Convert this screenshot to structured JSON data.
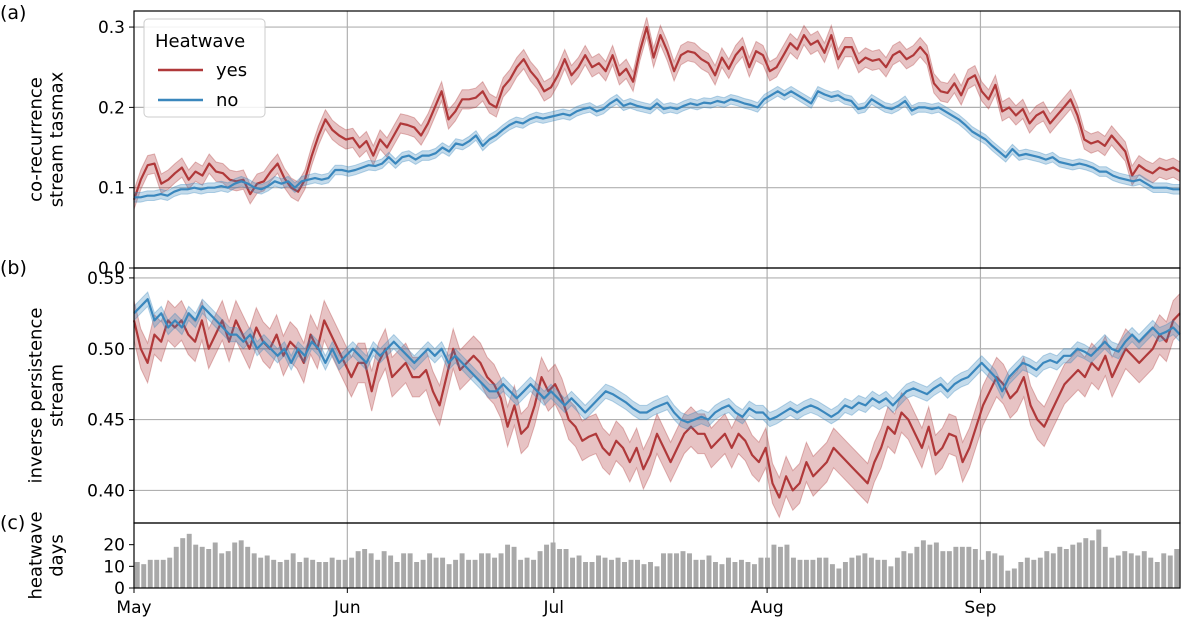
{
  "chart_data": {
    "type": "line",
    "x_axis": {
      "ticks": [
        "May",
        "Jun",
        "Jul",
        "Aug",
        "Sep"
      ],
      "tick_dates": [
        "05-01",
        "06-01",
        "07-01",
        "08-01",
        "09-01"
      ],
      "range": [
        "05-01",
        "09-30"
      ]
    },
    "legend": {
      "title": "Heatwave",
      "entries": [
        "yes",
        "no"
      ],
      "colors": [
        "#b0393a",
        "#3a87bd"
      ],
      "placement": "upper-left of panel (a)"
    },
    "grid": true,
    "panels": [
      {
        "label": "(a)",
        "ylabel": [
          "co-recurrence",
          "stream tasmax"
        ],
        "ylim": [
          0.0,
          0.32
        ],
        "yticks": [
          "0.0",
          "0.1",
          "0.2",
          "0.3"
        ],
        "series": [
          {
            "name": "yes",
            "color": "#b0393a",
            "band": 0.012,
            "values": [
              0.085,
              0.11,
              0.128,
              0.13,
              0.105,
              0.11,
              0.118,
              0.125,
              0.11,
              0.12,
              0.115,
              0.13,
              0.12,
              0.118,
              0.11,
              0.108,
              0.11,
              0.092,
              0.105,
              0.108,
              0.12,
              0.13,
              0.112,
              0.1,
              0.095,
              0.11,
              0.14,
              0.165,
              0.185,
              0.172,
              0.165,
              0.16,
              0.162,
              0.15,
              0.158,
              0.14,
              0.16,
              0.15,
              0.165,
              0.18,
              0.178,
              0.175,
              0.165,
              0.18,
              0.2,
              0.22,
              0.185,
              0.195,
              0.21,
              0.21,
              0.212,
              0.22,
              0.205,
              0.2,
              0.225,
              0.235,
              0.25,
              0.26,
              0.245,
              0.235,
              0.22,
              0.225,
              0.24,
              0.26,
              0.24,
              0.25,
              0.265,
              0.25,
              0.255,
              0.245,
              0.265,
              0.24,
              0.248,
              0.232,
              0.27,
              0.3,
              0.262,
              0.29,
              0.27,
              0.245,
              0.265,
              0.27,
              0.268,
              0.26,
              0.255,
              0.24,
              0.262,
              0.248,
              0.265,
              0.275,
              0.25,
              0.27,
              0.265,
              0.245,
              0.25,
              0.265,
              0.28,
              0.272,
              0.29,
              0.278,
              0.283,
              0.268,
              0.29,
              0.26,
              0.275,
              0.275,
              0.255,
              0.262,
              0.258,
              0.26,
              0.25,
              0.265,
              0.27,
              0.26,
              0.265,
              0.275,
              0.265,
              0.23,
              0.22,
              0.218,
              0.23,
              0.215,
              0.235,
              0.24,
              0.22,
              0.21,
              0.228,
              0.195,
              0.2,
              0.19,
              0.198,
              0.18,
              0.19,
              0.195,
              0.18,
              0.19,
              0.2,
              0.21,
              0.19,
              0.16,
              0.155,
              0.158,
              0.152,
              0.165,
              0.155,
              0.145,
              0.115,
              0.128,
              0.122,
              0.118,
              0.125,
              0.122,
              0.125,
              0.12
            ]
          },
          {
            "name": "no",
            "color": "#3a87bd",
            "band": 0.006,
            "values": [
              0.088,
              0.088,
              0.09,
              0.09,
              0.092,
              0.09,
              0.095,
              0.098,
              0.098,
              0.1,
              0.098,
              0.1,
              0.1,
              0.102,
              0.1,
              0.105,
              0.108,
              0.105,
              0.1,
              0.098,
              0.102,
              0.108,
              0.105,
              0.108,
              0.1,
              0.108,
              0.11,
              0.112,
              0.11,
              0.112,
              0.122,
              0.122,
              0.12,
              0.122,
              0.125,
              0.128,
              0.127,
              0.13,
              0.138,
              0.13,
              0.138,
              0.14,
              0.135,
              0.14,
              0.14,
              0.143,
              0.15,
              0.145,
              0.155,
              0.153,
              0.158,
              0.165,
              0.152,
              0.16,
              0.165,
              0.172,
              0.178,
              0.182,
              0.18,
              0.185,
              0.188,
              0.186,
              0.188,
              0.19,
              0.192,
              0.19,
              0.195,
              0.198,
              0.2,
              0.195,
              0.198,
              0.205,
              0.21,
              0.202,
              0.205,
              0.202,
              0.2,
              0.198,
              0.205,
              0.198,
              0.2,
              0.198,
              0.202,
              0.205,
              0.203,
              0.206,
              0.205,
              0.208,
              0.206,
              0.21,
              0.208,
              0.205,
              0.203,
              0.2,
              0.21,
              0.215,
              0.22,
              0.215,
              0.22,
              0.215,
              0.21,
              0.205,
              0.22,
              0.216,
              0.213,
              0.215,
              0.21,
              0.208,
              0.198,
              0.2,
              0.21,
              0.205,
              0.2,
              0.198,
              0.202,
              0.208,
              0.196,
              0.2,
              0.2,
              0.198,
              0.2,
              0.195,
              0.19,
              0.185,
              0.178,
              0.17,
              0.165,
              0.16,
              0.152,
              0.145,
              0.138,
              0.148,
              0.14,
              0.142,
              0.14,
              0.138,
              0.135,
              0.138,
              0.132,
              0.13,
              0.128,
              0.13,
              0.128,
              0.125,
              0.12,
              0.12,
              0.115,
              0.112,
              0.11,
              0.108,
              0.11,
              0.105,
              0.1,
              0.1,
              0.1,
              0.098,
              0.098
            ]
          }
        ]
      },
      {
        "label": "(b)",
        "ylabel": [
          "inverse persistence",
          "stream"
        ],
        "ylim": [
          0.377,
          0.557
        ],
        "yticks": [
          "0.40",
          "0.45",
          "0.50",
          "0.55"
        ],
        "series": [
          {
            "name": "yes",
            "color": "#b0393a",
            "band": 0.014,
            "values": [
              0.52,
              0.5,
              0.49,
              0.51,
              0.505,
              0.52,
              0.515,
              0.52,
              0.51,
              0.505,
              0.52,
              0.5,
              0.51,
              0.52,
              0.505,
              0.52,
              0.51,
              0.5,
              0.515,
              0.505,
              0.5,
              0.51,
              0.495,
              0.505,
              0.5,
              0.49,
              0.51,
              0.5,
              0.52,
              0.51,
              0.5,
              0.49,
              0.48,
              0.49,
              0.49,
              0.47,
              0.49,
              0.5,
              0.48,
              0.485,
              0.49,
              0.48,
              0.48,
              0.485,
              0.47,
              0.46,
              0.48,
              0.5,
              0.485,
              0.49,
              0.495,
              0.49,
              0.48,
              0.475,
              0.465,
              0.445,
              0.46,
              0.44,
              0.445,
              0.46,
              0.48,
              0.47,
              0.475,
              0.465,
              0.45,
              0.445,
              0.435,
              0.438,
              0.44,
              0.43,
              0.425,
              0.435,
              0.43,
              0.42,
              0.43,
              0.415,
              0.425,
              0.44,
              0.43,
              0.42,
              0.43,
              0.44,
              0.445,
              0.44,
              0.44,
              0.43,
              0.435,
              0.44,
              0.43,
              0.44,
              0.435,
              0.425,
              0.42,
              0.43,
              0.405,
              0.395,
              0.41,
              0.4,
              0.405,
              0.42,
              0.41,
              0.415,
              0.42,
              0.43,
              0.425,
              0.42,
              0.415,
              0.41,
              0.405,
              0.42,
              0.43,
              0.445,
              0.44,
              0.455,
              0.45,
              0.44,
              0.43,
              0.445,
              0.425,
              0.43,
              0.44,
              0.438,
              0.42,
              0.43,
              0.445,
              0.46,
              0.47,
              0.48,
              0.475,
              0.465,
              0.47,
              0.48,
              0.46,
              0.45,
              0.445,
              0.455,
              0.465,
              0.475,
              0.48,
              0.485,
              0.48,
              0.49,
              0.485,
              0.495,
              0.48,
              0.49,
              0.5,
              0.495,
              0.49,
              0.495,
              0.5,
              0.51,
              0.505,
              0.52,
              0.525
            ]
          },
          {
            "name": "no",
            "color": "#3a87bd",
            "band": 0.005,
            "values": [
              0.525,
              0.53,
              0.535,
              0.52,
              0.525,
              0.515,
              0.52,
              0.515,
              0.525,
              0.52,
              0.53,
              0.525,
              0.52,
              0.515,
              0.51,
              0.51,
              0.505,
              0.51,
              0.5,
              0.505,
              0.5,
              0.495,
              0.5,
              0.49,
              0.5,
              0.495,
              0.505,
              0.5,
              0.49,
              0.5,
              0.49,
              0.495,
              0.5,
              0.495,
              0.49,
              0.5,
              0.495,
              0.5,
              0.505,
              0.5,
              0.495,
              0.49,
              0.495,
              0.5,
              0.495,
              0.5,
              0.49,
              0.495,
              0.49,
              0.485,
              0.48,
              0.475,
              0.47,
              0.47,
              0.475,
              0.47,
              0.465,
              0.47,
              0.475,
              0.47,
              0.465,
              0.47,
              0.465,
              0.46,
              0.465,
              0.46,
              0.455,
              0.46,
              0.465,
              0.47,
              0.468,
              0.465,
              0.462,
              0.458,
              0.455,
              0.455,
              0.458,
              0.46,
              0.462,
              0.455,
              0.45,
              0.448,
              0.45,
              0.452,
              0.45,
              0.455,
              0.458,
              0.46,
              0.455,
              0.452,
              0.458,
              0.455,
              0.455,
              0.45,
              0.452,
              0.455,
              0.458,
              0.455,
              0.458,
              0.46,
              0.458,
              0.455,
              0.452,
              0.455,
              0.46,
              0.458,
              0.462,
              0.46,
              0.465,
              0.462,
              0.465,
              0.46,
              0.465,
              0.47,
              0.472,
              0.47,
              0.468,
              0.472,
              0.475,
              0.47,
              0.475,
              0.478,
              0.48,
              0.485,
              0.49,
              0.485,
              0.48,
              0.47,
              0.48,
              0.485,
              0.49,
              0.488,
              0.485,
              0.49,
              0.492,
              0.49,
              0.495,
              0.495,
              0.5,
              0.498,
              0.495,
              0.5,
              0.505,
              0.5,
              0.498,
              0.505,
              0.51,
              0.505,
              0.51,
              0.515,
              0.51,
              0.512,
              0.515,
              0.51
            ]
          }
        ]
      },
      {
        "label": "(c)",
        "ylabel": [
          "heatwave",
          "days"
        ],
        "ylim": [
          0,
          30
        ],
        "yticks": [
          "0",
          "10",
          "20"
        ],
        "type": "bar",
        "bar_color": "#a9a9a9",
        "values": [
          12,
          11,
          13,
          13,
          13,
          14,
          19,
          23,
          25,
          20,
          19,
          18,
          21,
          16,
          17,
          21,
          22,
          19,
          16,
          14,
          15,
          13,
          12,
          13,
          16,
          12,
          14,
          13,
          12,
          12,
          14,
          13,
          13,
          14,
          17,
          18,
          16,
          13,
          17,
          15,
          12,
          16,
          16,
          12,
          13,
          16,
          14,
          14,
          11,
          13,
          16,
          13,
          13,
          16,
          16,
          14,
          16,
          20,
          19,
          13,
          14,
          13,
          17,
          20,
          21,
          18,
          18,
          14,
          15,
          12,
          12,
          15,
          14,
          13,
          14,
          12,
          13,
          13,
          11,
          12,
          10,
          16,
          16,
          16,
          17,
          16,
          13,
          13,
          15,
          12,
          11,
          14,
          12,
          13,
          12,
          11,
          14,
          14,
          20,
          19,
          20,
          14,
          13,
          13,
          13,
          14,
          14,
          11,
          9,
          12,
          14,
          15,
          16,
          14,
          13,
          13,
          10,
          14,
          17,
          16,
          19,
          22,
          20,
          21,
          17,
          17,
          19,
          19,
          19,
          18,
          13,
          17,
          16,
          15,
          8,
          9,
          12,
          14,
          13,
          14,
          17,
          16,
          19,
          18,
          20,
          21,
          23,
          22,
          27,
          19,
          14,
          15,
          17,
          16,
          15,
          17,
          14,
          12,
          16,
          15,
          18
        ]
      }
    ]
  }
}
